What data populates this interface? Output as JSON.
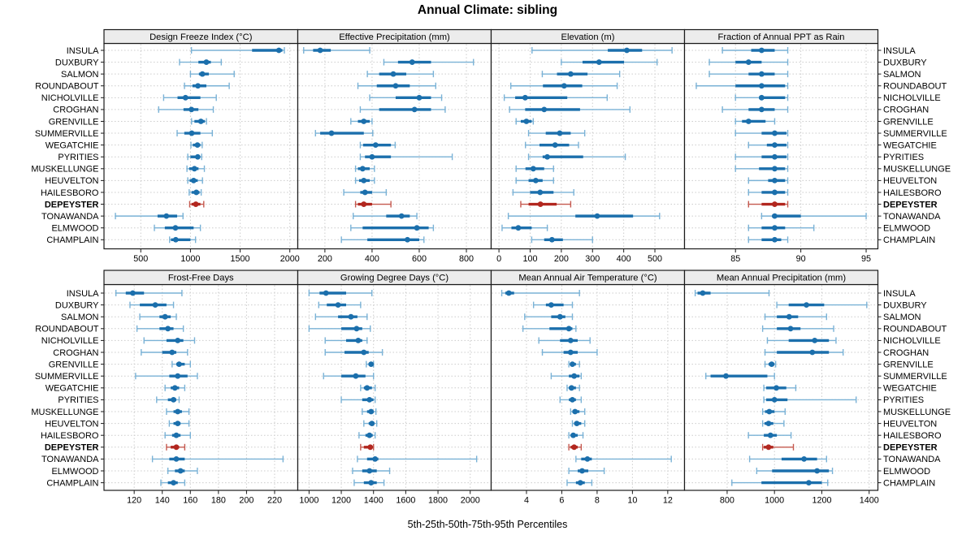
{
  "title": "Annual Climate: sibling",
  "xlabel": "5th-25th-50th-75th-95th Percentiles",
  "highlight_site": "DEPEYSTER",
  "colors": {
    "point_normal": "#1b6fac",
    "box_normal": "#1b6fac",
    "whisker_normal": "#7ab2d6",
    "point_highlight": "#b2271f",
    "box_highlight": "#b2271f",
    "whisker_highlight": "#c4584e",
    "grid": "#cccccc",
    "border": "#1a1a1a",
    "strip_bg": "#ececec"
  },
  "chart_data": {
    "type": "percentile-dotplot",
    "layout": "2 rows x 4 columns trellis; y axis = sites (same order every panel); whisker = 5th-95th pct, thick bar = 25th-75th pct, dot = median",
    "percentile_order": [
      "p5",
      "p25",
      "p50",
      "p75",
      "p95"
    ],
    "sites": [
      "INSULA",
      "DUXBURY",
      "SALMON",
      "ROUNDABOUT",
      "NICHOLVILLE",
      "CROGHAN",
      "GRENVILLE",
      "SUMMERVILLE",
      "WEGATCHIE",
      "PYRITIES",
      "MUSKELLUNGE",
      "HEUVELTON",
      "HAILESBORO",
      "DEPEYSTER",
      "TONAWANDA",
      "ELMWOOD",
      "CHAMPLAIN"
    ],
    "panels": [
      {
        "title": "Design Freeze Index (°C)",
        "row": 0,
        "col": 0,
        "xlim": [
          130,
          2080
        ],
        "ticks": [
          500,
          1000,
          1500,
          2000
        ],
        "values": [
          [
            1010,
            1620,
            1890,
            1925,
            1945
          ],
          [
            890,
            1080,
            1160,
            1205,
            1310
          ],
          [
            1000,
            1085,
            1120,
            1185,
            1440
          ],
          [
            940,
            1020,
            1075,
            1160,
            1390
          ],
          [
            730,
            870,
            950,
            1100,
            1260
          ],
          [
            680,
            930,
            1010,
            1080,
            1230
          ],
          [
            1011,
            1040,
            1105,
            1145,
            1161
          ],
          [
            866,
            938,
            1013,
            1100,
            1220
          ],
          [
            1005,
            1024,
            1070,
            1100,
            1118
          ],
          [
            973,
            1000,
            1073,
            1091,
            1113
          ],
          [
            965,
            987,
            1040,
            1081,
            1140
          ],
          [
            973,
            992,
            1032,
            1073,
            1121
          ],
          [
            987,
            1011,
            1059,
            1091,
            1108
          ],
          [
            992,
            1011,
            1054,
            1100,
            1134
          ],
          [
            245,
            669,
            758,
            866,
            925
          ],
          [
            637,
            742,
            849,
            1032,
            1100
          ],
          [
            790,
            804,
            852,
            1000,
            1051
          ]
        ]
      },
      {
        "title": "Effective Precipitation (mm)",
        "row": 0,
        "col": 1,
        "xlim": [
          85,
          905
        ],
        "ticks": [
          200,
          400,
          600,
          800
        ],
        "values": [
          [
            110,
            150,
            180,
            225,
            390
          ],
          [
            450,
            510,
            570,
            650,
            830
          ],
          [
            380,
            430,
            490,
            545,
            660
          ],
          [
            340,
            420,
            500,
            560,
            670
          ],
          [
            390,
            500,
            600,
            650,
            695
          ],
          [
            350,
            430,
            580,
            650,
            710
          ],
          [
            310,
            340,
            365,
            390,
            400
          ],
          [
            160,
            180,
            228,
            365,
            403
          ],
          [
            350,
            362,
            415,
            480,
            498
          ],
          [
            350,
            370,
            400,
            480,
            740
          ],
          [
            330,
            340,
            360,
            390,
            410
          ],
          [
            330,
            345,
            365,
            390,
            410
          ],
          [
            280,
            350,
            370,
            400,
            460
          ],
          [
            330,
            340,
            365,
            400,
            480
          ],
          [
            320,
            460,
            525,
            560,
            590
          ],
          [
            310,
            360,
            590,
            640,
            660
          ],
          [
            270,
            380,
            550,
            600,
            620
          ]
        ]
      },
      {
        "title": "Elevation (m)",
        "row": 0,
        "col": 2,
        "xlim": [
          -25,
          595
        ],
        "ticks": [
          0,
          100,
          200,
          300,
          400,
          500
        ],
        "values": [
          [
            106,
            349,
            410,
            459,
            555
          ],
          [
            200,
            268,
            321,
            401,
            507
          ],
          [
            139,
            186,
            230,
            284,
            387
          ],
          [
            38,
            141,
            209,
            267,
            379
          ],
          [
            17,
            52,
            84,
            219,
            347
          ],
          [
            34,
            84,
            145,
            260,
            420
          ],
          [
            55,
            70,
            88,
            105,
            110
          ],
          [
            95,
            150,
            195,
            230,
            275
          ],
          [
            85,
            130,
            180,
            225,
            255
          ],
          [
            95,
            140,
            155,
            270,
            405
          ],
          [
            55,
            85,
            110,
            145,
            175
          ],
          [
            55,
            95,
            118,
            140,
            175
          ],
          [
            45,
            100,
            132,
            175,
            240
          ],
          [
            70,
            95,
            133,
            185,
            230
          ],
          [
            30,
            245,
            315,
            430,
            515
          ],
          [
            10,
            40,
            62,
            105,
            155
          ],
          [
            105,
            145,
            170,
            205,
            300
          ]
        ]
      },
      {
        "title": "Fraction of Annual PPT as Rain",
        "row": 0,
        "col": 3,
        "xlim": [
          81.1,
          95.9
        ],
        "ticks": [
          85,
          90,
          95
        ],
        "values": [
          [
            84,
            86.2,
            87,
            88,
            89
          ],
          [
            83,
            85,
            86,
            87,
            89
          ],
          [
            83,
            86,
            87,
            88,
            89
          ],
          [
            82,
            85,
            87,
            88.8,
            89
          ],
          [
            85,
            86.8,
            87,
            88.8,
            89
          ],
          [
            84,
            86,
            87,
            88,
            89
          ],
          [
            85,
            85.5,
            86,
            87.3,
            88
          ],
          [
            85,
            87,
            88,
            88.9,
            89
          ],
          [
            86,
            87.4,
            88,
            88.9,
            89
          ],
          [
            85,
            87,
            88,
            88.9,
            89
          ],
          [
            85,
            86.8,
            88,
            88.8,
            89
          ],
          [
            86,
            87.5,
            88,
            88.8,
            89
          ],
          [
            86,
            87,
            88,
            88.8,
            89
          ],
          [
            86,
            87,
            88,
            88.8,
            89
          ],
          [
            87,
            87.8,
            88,
            90,
            95
          ],
          [
            86,
            87,
            88,
            88.8,
            91
          ],
          [
            86,
            87,
            88,
            88.5,
            89
          ]
        ]
      },
      {
        "title": "Frost-Free Days",
        "row": 1,
        "col": 0,
        "xlim": [
          98.5,
          236.5
        ],
        "ticks": [
          120,
          140,
          160,
          180,
          200,
          220
        ],
        "values": [
          [
            107,
            114,
            119,
            127,
            154
          ],
          [
            117,
            124,
            135,
            143,
            148
          ],
          [
            124,
            138,
            142,
            146,
            150
          ],
          [
            122,
            138,
            144,
            148,
            155
          ],
          [
            127,
            143,
            151,
            155,
            163
          ],
          [
            125,
            140,
            147,
            150,
            158
          ],
          [
            147,
            150,
            152,
            156,
            160
          ],
          [
            121,
            145,
            151,
            158,
            165
          ],
          [
            142,
            146,
            149,
            152,
            156
          ],
          [
            136,
            144,
            148,
            150,
            152
          ],
          [
            143,
            148,
            151,
            154,
            159
          ],
          [
            145,
            148,
            151,
            153,
            159
          ],
          [
            142,
            147,
            150,
            153,
            160
          ],
          [
            143,
            146,
            150,
            152,
            156
          ],
          [
            133,
            145,
            150,
            156,
            226
          ],
          [
            144,
            149,
            153,
            156,
            165
          ],
          [
            139,
            144,
            148,
            151,
            156
          ]
        ]
      },
      {
        "title": "Growing Degree Days (°C)",
        "row": 1,
        "col": 1,
        "xlim": [
          930,
          2130
        ],
        "ticks": [
          1000,
          1200,
          1400,
          1600,
          1800,
          2000
        ],
        "values": [
          [
            1000,
            1065,
            1105,
            1230,
            1390
          ],
          [
            1060,
            1110,
            1180,
            1230,
            1320
          ],
          [
            1040,
            1180,
            1260,
            1300,
            1360
          ],
          [
            1000,
            1200,
            1295,
            1330,
            1380
          ],
          [
            1100,
            1230,
            1305,
            1330,
            1360
          ],
          [
            1100,
            1220,
            1340,
            1370,
            1455
          ],
          [
            1355,
            1370,
            1385,
            1395,
            1400
          ],
          [
            1090,
            1200,
            1290,
            1350,
            1400
          ],
          [
            1320,
            1340,
            1360,
            1390,
            1410
          ],
          [
            1200,
            1330,
            1375,
            1400,
            1410
          ],
          [
            1330,
            1360,
            1385,
            1400,
            1415
          ],
          [
            1340,
            1370,
            1390,
            1405,
            1420
          ],
          [
            1310,
            1350,
            1375,
            1395,
            1410
          ],
          [
            1320,
            1340,
            1380,
            1395,
            1400
          ],
          [
            1300,
            1360,
            1410,
            1430,
            2040
          ],
          [
            1270,
            1330,
            1375,
            1420,
            1500
          ],
          [
            1280,
            1340,
            1385,
            1420,
            1465
          ]
        ]
      },
      {
        "title": "Mean Annual Air Temperature (°C)",
        "row": 1,
        "col": 2,
        "xlim": [
          2.0,
          12.95
        ],
        "ticks": [
          4,
          6,
          8,
          10,
          12
        ],
        "values": [
          [
            2.6,
            2.8,
            3.0,
            3.3,
            7.0
          ],
          [
            4.4,
            5.1,
            5.4,
            6.1,
            6.6
          ],
          [
            3.9,
            5.4,
            5.9,
            6.2,
            6.6
          ],
          [
            3.8,
            5.3,
            6.4,
            6.6,
            6.8
          ],
          [
            4.7,
            5.9,
            6.5,
            6.9,
            7.6
          ],
          [
            4.9,
            6.1,
            6.5,
            6.9,
            8.0
          ],
          [
            6.4,
            6.5,
            6.6,
            6.8,
            7.0
          ],
          [
            5.4,
            6.4,
            6.7,
            7.0,
            7.1
          ],
          [
            6.3,
            6.4,
            6.55,
            6.8,
            7.0
          ],
          [
            5.9,
            6.4,
            6.6,
            6.8,
            7.1
          ],
          [
            6.5,
            6.6,
            6.75,
            7.0,
            7.3
          ],
          [
            6.6,
            6.7,
            6.85,
            7.1,
            7.3
          ],
          [
            6.4,
            6.5,
            6.65,
            6.9,
            7.2
          ],
          [
            6.4,
            6.5,
            6.7,
            6.9,
            7.1
          ],
          [
            6.8,
            7.1,
            7.45,
            7.7,
            12.2
          ],
          [
            6.4,
            6.9,
            7.15,
            7.5,
            8.4
          ],
          [
            6.3,
            6.8,
            7.05,
            7.3,
            7.7
          ]
        ]
      },
      {
        "title": "Mean Annual Precipitation (mm)",
        "row": 1,
        "col": 3,
        "xlim": [
          620,
          1437
        ],
        "ticks": [
          800,
          1000,
          1200,
          1400
        ],
        "values": [
          [
            665,
            675,
            697,
            730,
            977
          ],
          [
            1010,
            1060,
            1135,
            1210,
            1390
          ],
          [
            960,
            1010,
            1062,
            1100,
            1220
          ],
          [
            950,
            1010,
            1068,
            1110,
            1250
          ],
          [
            970,
            1060,
            1170,
            1230,
            1260
          ],
          [
            960,
            1010,
            1160,
            1230,
            1290
          ],
          [
            960,
            975,
            988,
            1000,
            1005
          ],
          [
            710,
            730,
            795,
            970,
            1000
          ],
          [
            955,
            965,
            1008,
            1050,
            1090
          ],
          [
            955,
            965,
            1000,
            1055,
            1345
          ],
          [
            950,
            960,
            978,
            1000,
            1045
          ],
          [
            950,
            958,
            975,
            995,
            1040
          ],
          [
            890,
            955,
            983,
            1010,
            1070
          ],
          [
            950,
            955,
            975,
            995,
            1080
          ],
          [
            895,
            1030,
            1125,
            1180,
            1220
          ],
          [
            925,
            990,
            1180,
            1230,
            1245
          ],
          [
            820,
            945,
            1145,
            1200,
            1225
          ]
        ]
      }
    ]
  }
}
